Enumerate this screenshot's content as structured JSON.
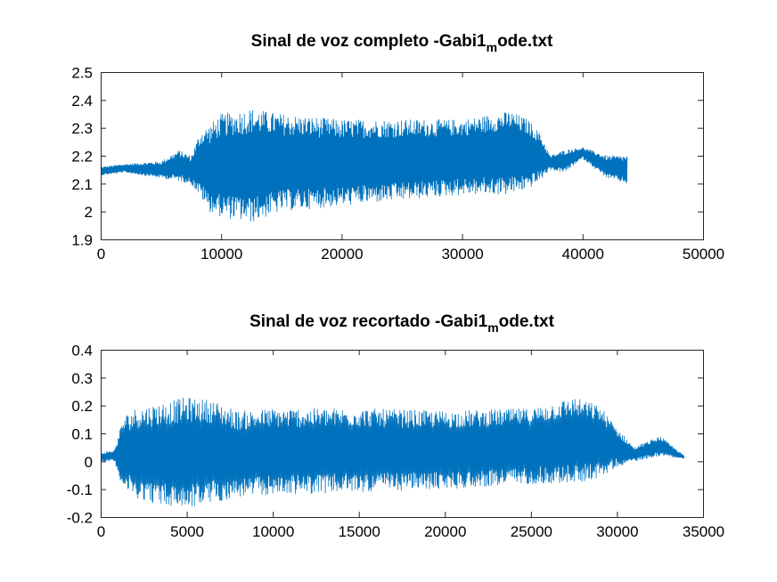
{
  "colors": {
    "series": "#0072BD",
    "axis": "#262626",
    "background": "#ffffff"
  },
  "chart_data": [
    {
      "type": "line",
      "title": "Sinal de voz completo -Gabi1",
      "title_subscript": "m",
      "title_suffix": "ode.txt",
      "xlabel": "",
      "ylabel": "",
      "xlim": [
        0,
        50000
      ],
      "ylim": [
        1.9,
        2.5
      ],
      "xticks": [
        0,
        10000,
        20000,
        30000,
        40000,
        50000
      ],
      "xtick_labels": [
        "0",
        "10000",
        "20000",
        "30000",
        "40000",
        "50000"
      ],
      "yticks": [
        1.9,
        2,
        2.1,
        2.2,
        2.3,
        2.4,
        2.5
      ],
      "ytick_labels": [
        "1.9",
        "2",
        "2.1",
        "2.2",
        "2.3",
        "2.4",
        "2.5"
      ],
      "grid": false,
      "series": [
        {
          "n_samples": 43700,
          "envelope_x": [
            0,
            2000,
            5000,
            6500,
            7500,
            8300,
            9000,
            10000,
            12500,
            15000,
            20000,
            25000,
            30000,
            34000,
            35500,
            36500,
            37300,
            38500,
            40000,
            42000,
            43700
          ],
          "envelope_upper": [
            2.16,
            2.17,
            2.18,
            2.22,
            2.2,
            2.29,
            2.31,
            2.35,
            2.37,
            2.35,
            2.33,
            2.33,
            2.33,
            2.36,
            2.33,
            2.28,
            2.2,
            2.22,
            2.23,
            2.2,
            2.2
          ],
          "envelope_lower": [
            2.13,
            2.14,
            2.12,
            2.11,
            2.1,
            2.05,
            2.0,
            1.98,
            1.96,
            2.0,
            2.02,
            2.04,
            2.06,
            2.06,
            2.08,
            2.11,
            2.15,
            2.14,
            2.19,
            2.12,
            2.1
          ]
        }
      ]
    },
    {
      "type": "line",
      "title": "Sinal de voz recortado -Gabi1",
      "title_subscript": "m",
      "title_suffix": "ode.txt",
      "xlabel": "",
      "ylabel": "",
      "xlim": [
        0,
        35000
      ],
      "ylim": [
        -0.2,
        0.4
      ],
      "xticks": [
        0,
        5000,
        10000,
        15000,
        20000,
        25000,
        30000,
        35000
      ],
      "xtick_labels": [
        "0",
        "5000",
        "10000",
        "15000",
        "20000",
        "25000",
        "30000",
        "35000"
      ],
      "yticks": [
        -0.2,
        -0.1,
        0,
        0.1,
        0.2,
        0.3,
        0.4
      ],
      "ytick_labels": [
        "-0.2",
        "-0.1",
        "0",
        "0.1",
        "0.2",
        "0.3",
        "0.4"
      ],
      "grid": false,
      "series": [
        {
          "n_samples": 33900,
          "envelope_x": [
            0,
            800,
            1300,
            2000,
            3500,
            5000,
            6500,
            8000,
            10000,
            15000,
            20000,
            25000,
            27500,
            29000,
            30000,
            31000,
            32500,
            33900
          ],
          "envelope_upper": [
            0.03,
            0.04,
            0.16,
            0.19,
            0.21,
            0.23,
            0.22,
            0.18,
            0.19,
            0.19,
            0.18,
            0.19,
            0.23,
            0.2,
            0.12,
            0.05,
            0.09,
            0.02
          ],
          "envelope_lower": [
            0.0,
            0.0,
            -0.1,
            -0.13,
            -0.16,
            -0.17,
            -0.15,
            -0.13,
            -0.12,
            -0.11,
            -0.1,
            -0.08,
            -0.08,
            -0.06,
            -0.02,
            0.0,
            0.02,
            0.01
          ]
        }
      ]
    }
  ]
}
